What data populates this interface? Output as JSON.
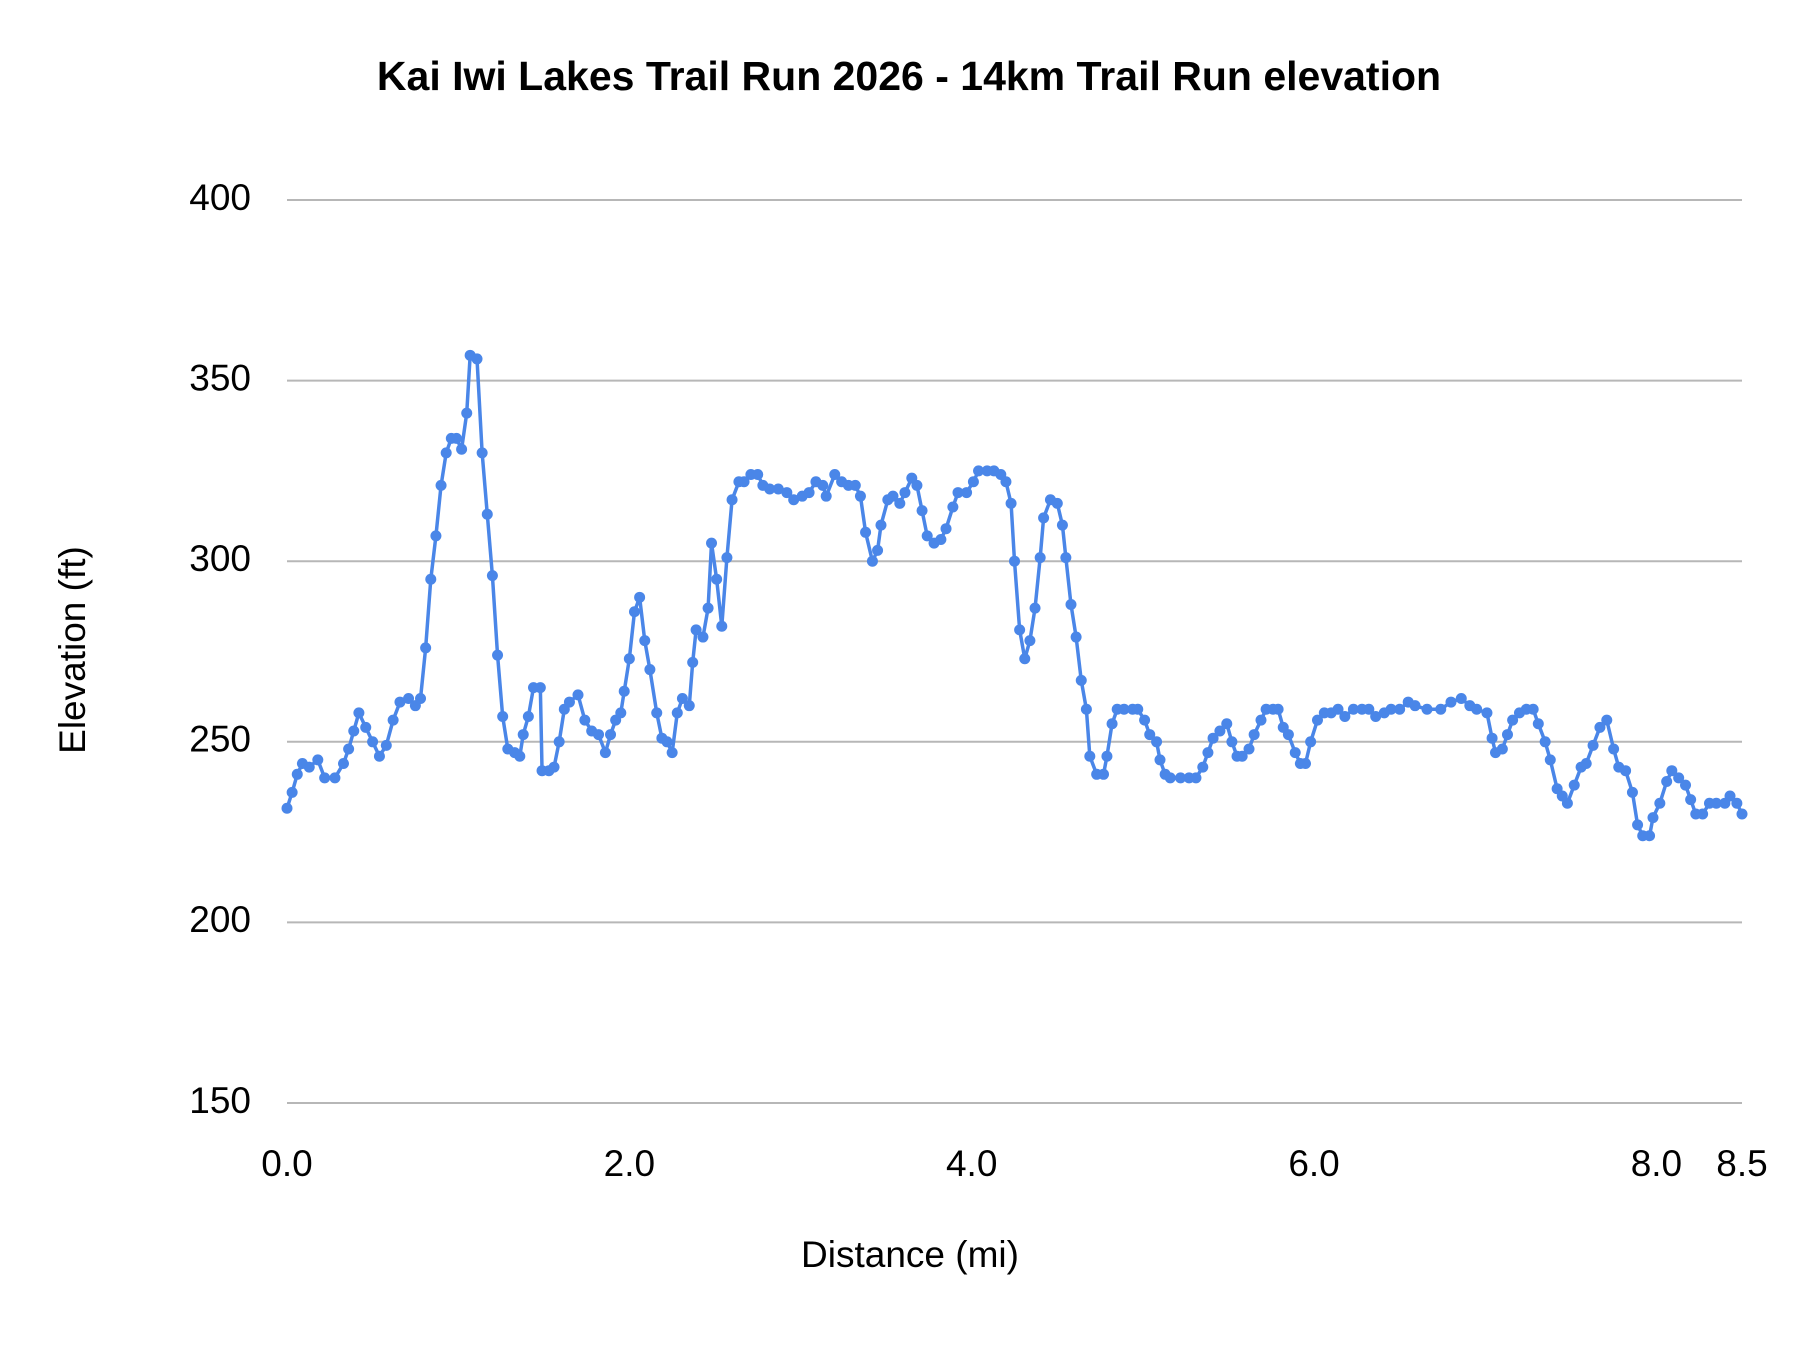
{
  "chart_data": {
    "type": "line",
    "title": "Kai Iwi Lakes Trail Run 2026 - 14km Trail Run elevation",
    "x_label": "Distance (mi)",
    "y_label": "Elevation (ft)",
    "color": "#4a86e8",
    "grid": true,
    "markers": true,
    "xlim": [
      0,
      8.5
    ],
    "ylim": [
      150,
      400
    ],
    "xticks": [
      {
        "value": 0,
        "label": "0.0"
      },
      {
        "value": 2,
        "label": "2.0"
      },
      {
        "value": 4,
        "label": "4.0"
      },
      {
        "value": 6,
        "label": "6.0"
      },
      {
        "value": 8,
        "label": "8.0"
      },
      8.5
    ],
    "yticks": [
      150,
      200,
      250,
      300,
      350,
      400
    ],
    "x": [
      0.0,
      0.03,
      0.06,
      0.09,
      0.13,
      0.18,
      0.22,
      0.28,
      0.33,
      0.36,
      0.39,
      0.42,
      0.46,
      0.5,
      0.54,
      0.58,
      0.62,
      0.66,
      0.71,
      0.75,
      0.78,
      0.81,
      0.84,
      0.87,
      0.9,
      0.93,
      0.96,
      0.99,
      1.02,
      1.05,
      1.07,
      1.11,
      1.14,
      1.17,
      1.2,
      1.23,
      1.26,
      1.29,
      1.33,
      1.36,
      1.38,
      1.41,
      1.44,
      1.48,
      1.49,
      1.53,
      1.56,
      1.59,
      1.62,
      1.65,
      1.7,
      1.74,
      1.78,
      1.82,
      1.86,
      1.89,
      1.92,
      1.95,
      1.97,
      2.0,
      2.03,
      2.06,
      2.09,
      2.12,
      2.16,
      2.19,
      2.22,
      2.25,
      2.28,
      2.31,
      2.35,
      2.37,
      2.39,
      2.43,
      2.46,
      2.48,
      2.51,
      2.54,
      2.57,
      2.6,
      2.64,
      2.67,
      2.71,
      2.75,
      2.78,
      2.82,
      2.87,
      2.92,
      2.96,
      3.01,
      3.05,
      3.09,
      3.13,
      3.15,
      3.2,
      3.24,
      3.28,
      3.32,
      3.35,
      3.38,
      3.42,
      3.45,
      3.47,
      3.51,
      3.54,
      3.58,
      3.61,
      3.65,
      3.68,
      3.71,
      3.74,
      3.78,
      3.82,
      3.85,
      3.89,
      3.92,
      3.97,
      4.01,
      4.04,
      4.09,
      4.13,
      4.17,
      4.2,
      4.23,
      4.25,
      4.28,
      4.31,
      4.34,
      4.37,
      4.4,
      4.42,
      4.46,
      4.5,
      4.53,
      4.55,
      4.58,
      4.61,
      4.64,
      4.67,
      4.69,
      4.73,
      4.77,
      4.79,
      4.82,
      4.85,
      4.89,
      4.94,
      4.97,
      5.01,
      5.04,
      5.08,
      5.1,
      5.13,
      5.16,
      5.22,
      5.27,
      5.31,
      5.35,
      5.38,
      5.41,
      5.45,
      5.49,
      5.52,
      5.55,
      5.58,
      5.62,
      5.65,
      5.69,
      5.72,
      5.76,
      5.79,
      5.82,
      5.85,
      5.89,
      5.92,
      5.95,
      5.98,
      6.02,
      6.06,
      6.1,
      6.14,
      6.18,
      6.23,
      6.28,
      6.32,
      6.36,
      6.41,
      6.45,
      6.5,
      6.55,
      6.59,
      6.66,
      6.74,
      6.8,
      6.86,
      6.91,
      6.95,
      7.01,
      7.04,
      7.06,
      7.1,
      7.13,
      7.16,
      7.2,
      7.24,
      7.28,
      7.31,
      7.35,
      7.38,
      7.42,
      7.45,
      7.48,
      7.52,
      7.56,
      7.59,
      7.63,
      7.67,
      7.71,
      7.75,
      7.78,
      7.82,
      7.86,
      7.89,
      7.92,
      7.96,
      7.98,
      8.02,
      8.06,
      8.09,
      8.13,
      8.17,
      8.2,
      8.23,
      8.27,
      8.31,
      8.35,
      8.4,
      8.43,
      8.47,
      8.5
    ],
    "values": [
      231.6,
      236,
      241,
      244,
      243,
      245,
      240,
      240,
      244,
      248,
      253,
      258,
      254,
      250,
      246,
      249,
      256,
      261,
      262,
      260,
      262,
      276,
      295,
      307,
      321,
      330,
      334,
      334,
      331,
      341,
      357,
      356,
      330,
      313,
      296,
      274,
      257,
      248,
      247,
      246,
      252,
      257,
      265,
      265,
      242,
      242,
      243,
      250,
      259,
      261,
      263,
      256,
      253,
      252,
      247,
      252,
      256,
      258,
      264,
      273,
      286,
      290,
      278,
      270,
      258,
      251,
      250,
      247,
      258,
      262,
      260,
      272,
      281,
      279,
      287,
      305,
      295,
      282,
      301,
      317,
      322,
      322,
      324,
      324,
      321,
      320,
      320,
      319,
      317,
      318,
      319,
      322,
      321,
      318,
      324,
      322,
      321,
      321,
      318,
      308,
      300,
      303,
      310,
      317,
      318,
      316,
      319,
      323,
      321,
      314,
      307,
      305,
      306,
      309,
      315,
      319,
      319,
      322,
      325,
      325,
      325,
      324,
      322,
      316,
      300,
      281,
      273,
      278,
      287,
      301,
      312,
      317,
      316,
      310,
      301,
      288,
      279,
      267,
      259,
      246,
      241,
      241,
      246,
      255,
      259,
      259,
      259,
      259,
      256,
      252,
      250,
      245,
      241,
      240,
      240,
      240,
      240,
      243,
      247,
      251,
      253,
      255,
      250,
      246,
      246,
      248,
      252,
      256,
      259,
      259,
      259,
      254,
      252,
      247,
      244,
      244,
      250,
      256,
      258,
      258,
      259,
      257,
      259,
      259,
      259,
      257,
      258,
      259,
      259,
      261,
      260,
      259,
      259,
      261,
      262,
      260,
      259,
      258,
      251,
      247,
      248,
      252,
      256,
      258,
      259,
      259,
      255,
      250,
      245,
      237,
      235,
      233,
      238,
      243,
      244,
      249,
      254,
      256,
      248,
      243,
      242,
      236,
      227,
      224,
      224,
      229,
      233,
      239,
      242,
      240,
      238,
      234,
      230,
      230,
      233,
      233,
      233,
      235,
      233,
      230
    ]
  }
}
